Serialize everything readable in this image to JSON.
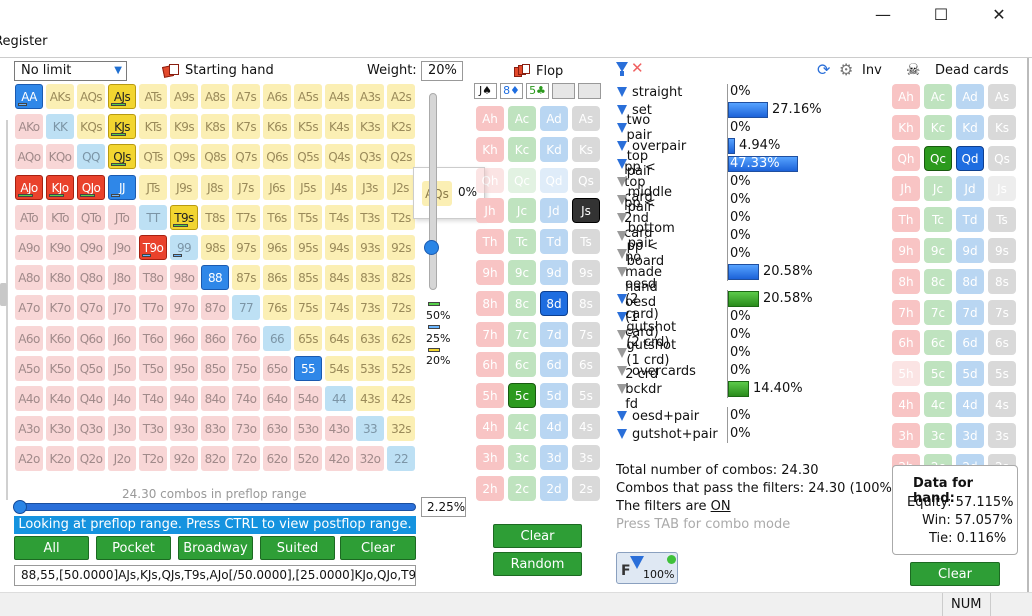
{
  "window": {
    "min": "—",
    "max": "☐",
    "close": "✕",
    "menu": "Register"
  },
  "controls": {
    "game_type": "No limit",
    "starting_hand": "Starting hand",
    "weight_label": "Weight:",
    "weight_value": "20%"
  },
  "grid": {
    "ranks": [
      "A",
      "K",
      "Q",
      "J",
      "T",
      "9",
      "8",
      "7",
      "6",
      "5",
      "4",
      "3",
      "2"
    ],
    "selected": [
      "AA",
      "AJs",
      "KJs",
      "QJs",
      "T9s",
      "AJo",
      "KJo",
      "QJo",
      "JJ",
      "T9o",
      "88",
      "55"
    ],
    "bars": {
      "AA": [
        "b"
      ],
      "AJs": [
        "g"
      ],
      "KJs": [
        "g"
      ],
      "QJs": [
        "g"
      ],
      "T9s": [
        "g"
      ],
      "AJo": [
        "g"
      ],
      "KJo": [
        "g"
      ],
      "QJo": [
        "g"
      ],
      "JJ": [
        "b"
      ],
      "T9o": [
        "b"
      ],
      "99": [
        "b"
      ],
      "88": [],
      "55": []
    }
  },
  "hover": {
    "hand": "AQs",
    "pct": "0%"
  },
  "slider_marks": [
    "50%",
    "25%",
    "20%"
  ],
  "combos_caption": "24.30 combos in preflop range",
  "range_pct": "2.25%",
  "info_bar": "Looking at preflop range. Press CTRL to view postflop range.",
  "buttons": {
    "all": "All",
    "pocket": "Pocket",
    "broadway": "Broadway",
    "suited": "Suited",
    "clear": "Clear",
    "flop_clear": "Clear",
    "random": "Random",
    "dead_clear": "Clear"
  },
  "range_text": "88,55,[50.0000]AJs,KJs,QJs,T9s,AJo[/50.0000],[25.0000]KJo,QJo,T9",
  "flop": {
    "title": "Flop",
    "slots": [
      "J♠",
      "8♦",
      "5♣",
      "",
      ""
    ]
  },
  "deck_ranks": [
    "A",
    "K",
    "Q",
    "J",
    "T",
    "9",
    "8",
    "7",
    "6",
    "5",
    "4",
    "3",
    "2"
  ],
  "flop_cards": {
    "selected": {
      "Js": "s",
      "8d": "d",
      "5c": "c"
    }
  },
  "dead": {
    "title": "Dead cards",
    "selected": {
      "Qc": "c",
      "Qd": "d"
    }
  },
  "inv_label": "Inv",
  "filters": [
    {
      "label": "straight",
      "val": "0%",
      "icon": "blue"
    },
    {
      "label": "set",
      "val": "27.16%",
      "icon": "blue",
      "bar": 0.3333
    },
    {
      "label": "two pair",
      "val": "0%",
      "icon": "blue"
    },
    {
      "label": "overpair",
      "val": "4.94%",
      "icon": "blue",
      "bar": 0.06
    },
    {
      "label": "top pair",
      "val": "47.33%",
      "icon": "blue",
      "bar": 0.58,
      "inside": true
    },
    {
      "label": "pp < top card",
      "val": "0%",
      "icon": "grey"
    },
    {
      "label": "middle pair",
      "val": "0%",
      "icon": "grey"
    },
    {
      "label": "pp < 2nd card",
      "val": "0%",
      "icon": "grey"
    },
    {
      "label": "bottom pair",
      "val": "0%",
      "icon": "grey"
    },
    {
      "label": "pp < board",
      "val": "0%",
      "icon": "grey"
    },
    {
      "label": "no made hand",
      "val": "20.58%",
      "icon": "grey",
      "bar": 0.253
    }
  ],
  "draws": [
    {
      "label": "oesd (2 card)",
      "val": "20.58%",
      "icon": "blue",
      "bar": 0.253,
      "green": true
    },
    {
      "label": "oesd (1 card)",
      "val": "0%",
      "icon": "blue"
    },
    {
      "label": "gutshot (2 crd)",
      "val": "0%",
      "icon": "grey"
    },
    {
      "label": "gutshot (1 crd)",
      "val": "0%",
      "icon": "grey"
    },
    {
      "label": "overcards",
      "val": "0%",
      "icon": "grey"
    },
    {
      "label": "2 crd bckdr fd",
      "val": "14.40%",
      "icon": "grey",
      "bar": 0.177,
      "green": true
    }
  ],
  "combos": [
    {
      "label": "oesd+pair",
      "val": "0%",
      "icon": "blue"
    },
    {
      "label": "gutshot+pair",
      "val": "0%",
      "icon": "blue"
    }
  ],
  "summary": {
    "total": "Total number of combos: 24.30",
    "pass": "Combos that pass the filters: 24.30 (100%)",
    "filters_pre": "The filters are ",
    "filters_on": "ON",
    "tab_hint": "Press TAB for combo mode"
  },
  "filter_btn": {
    "letter": "F",
    "pct": "100%"
  },
  "hand_data": {
    "title": "Data for hand:",
    "equity": "Equity: 57.115%",
    "win": "Win: 57.057%",
    "tie": "Tie: 0.116%"
  },
  "status": {
    "num": "NUM"
  }
}
